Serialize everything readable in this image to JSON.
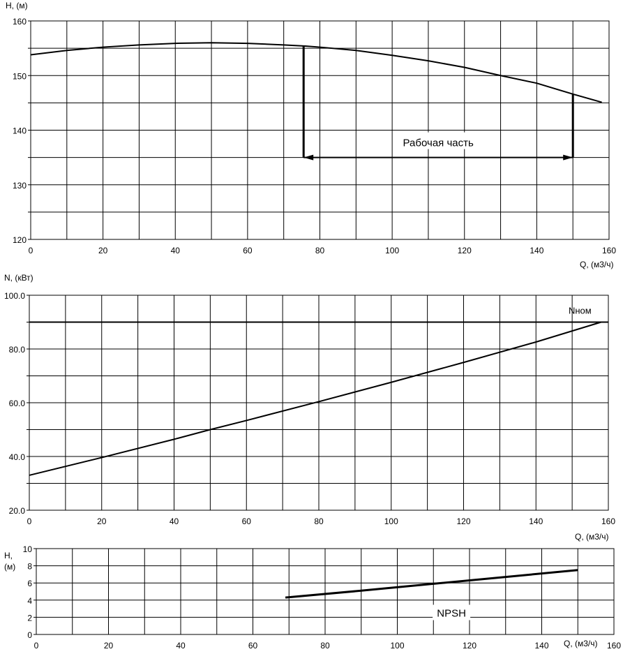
{
  "chart_data": [
    {
      "type": "line",
      "ylabel": "H, (м)",
      "xlabel": "Q, (м3/ч)",
      "xlim": [
        0,
        160
      ],
      "ylim": [
        120,
        160
      ],
      "x_ticks": [
        0,
        20,
        40,
        60,
        80,
        100,
        120,
        140,
        160
      ],
      "y_ticks": [
        120,
        130,
        140,
        150,
        160
      ],
      "y_tick_labels": [
        "120",
        "130",
        "140",
        "150",
        "160"
      ],
      "grid": {
        "x_step": 10,
        "y_step": 5
      },
      "series": [
        {
          "x": [
            0,
            10,
            20,
            30,
            40,
            50,
            60,
            70,
            76,
            80,
            90,
            100,
            110,
            120,
            130,
            140,
            150,
            158
          ],
          "y": [
            153.8,
            154.6,
            155.2,
            155.6,
            155.9,
            156.0,
            155.9,
            155.6,
            155.4,
            155.2,
            154.6,
            153.7,
            152.7,
            151.5,
            150.0,
            148.6,
            146.6,
            145.1
          ]
        }
      ],
      "working_range": {
        "label": "Рабочая часть",
        "q_min": 75.5,
        "q_max": 150,
        "arrow_h": 135
      }
    },
    {
      "type": "line",
      "ylabel": "N, (кВт)",
      "xlabel": "Q, (м3/ч)",
      "xlim": [
        0,
        160
      ],
      "ylim": [
        20,
        100
      ],
      "x_ticks": [
        0,
        20,
        40,
        60,
        80,
        100,
        120,
        140,
        160
      ],
      "y_ticks": [
        20,
        40,
        60,
        80,
        100
      ],
      "y_tick_labels": [
        "20.0",
        "40.0",
        "60.0",
        "80.0",
        "100.0"
      ],
      "grid": {
        "x_step": 10,
        "y_step": 10
      },
      "series": [
        {
          "x": [
            0,
            20,
            40,
            50,
            60,
            80,
            100,
            120,
            140,
            158
          ],
          "y": [
            33.0,
            39.6,
            46.4,
            50.0,
            53.4,
            60.4,
            67.6,
            75.0,
            82.6,
            90.0
          ]
        }
      ],
      "reference_line": {
        "label": "Nном",
        "y": 90
      }
    },
    {
      "type": "line",
      "ylabel": "H, (м)",
      "xlabel": "Q, (м3/ч)",
      "xlim": [
        0,
        160
      ],
      "ylim": [
        0,
        10
      ],
      "x_ticks": [
        0,
        20,
        40,
        60,
        80,
        100,
        120,
        140,
        160
      ],
      "y_ticks": [
        0,
        2,
        4,
        6,
        8,
        10
      ],
      "y_tick_labels": [
        "0",
        "2",
        "4",
        "6",
        "8",
        "10"
      ],
      "grid": {
        "x_step": 10,
        "y_step": 2
      },
      "series": [
        {
          "name": "NPSH",
          "x": [
            69,
            90,
            110,
            130,
            150
          ],
          "y": [
            4.3,
            5.1,
            5.9,
            6.7,
            7.5
          ]
        }
      ]
    }
  ]
}
